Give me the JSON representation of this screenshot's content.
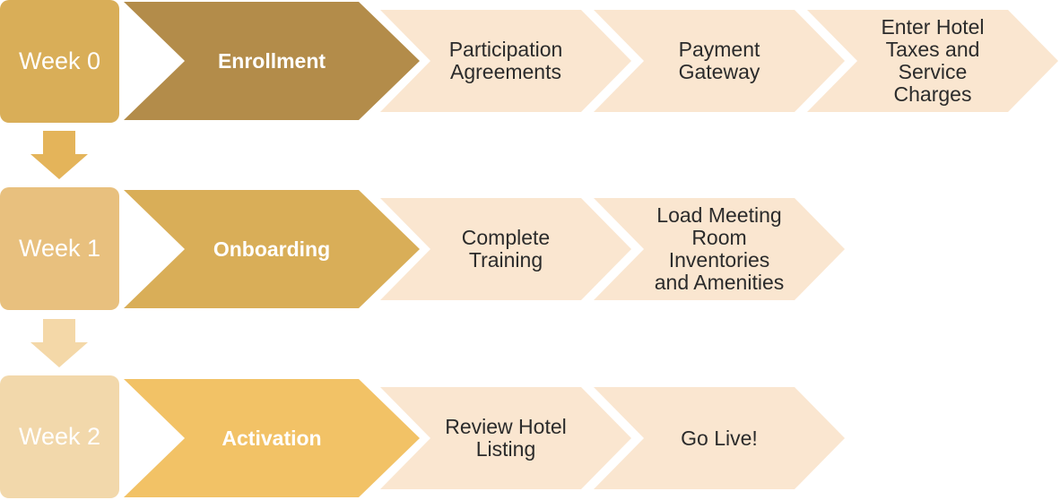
{
  "colors": {
    "week0": "#d9ae58",
    "week1": "#e8c07e",
    "week2": "#f2d8ab",
    "arrow1": "#e4b45a",
    "arrow2": "#f4d8a8",
    "phase0": "#b38c4a",
    "phase1": "#d9ae58",
    "phase2": "#f2c266",
    "step": "#fae6d0"
  },
  "rows": [
    {
      "week": "Week 0",
      "phase": "Enrollment",
      "steps": [
        "Participation\nAgreements",
        "Payment\nGateway",
        "Enter Hotel\nTaxes and\nService\nCharges"
      ]
    },
    {
      "week": "Week 1",
      "phase": "Onboarding",
      "steps": [
        "Complete\nTraining",
        "Load Meeting\nRoom\nInventories\nand Amenities"
      ]
    },
    {
      "week": "Week 2",
      "phase": "Activation",
      "steps": [
        "Review Hotel\nListing",
        "Go Live!"
      ]
    }
  ],
  "icons": [
    "down-arrow-icon",
    "down-arrow-icon"
  ]
}
